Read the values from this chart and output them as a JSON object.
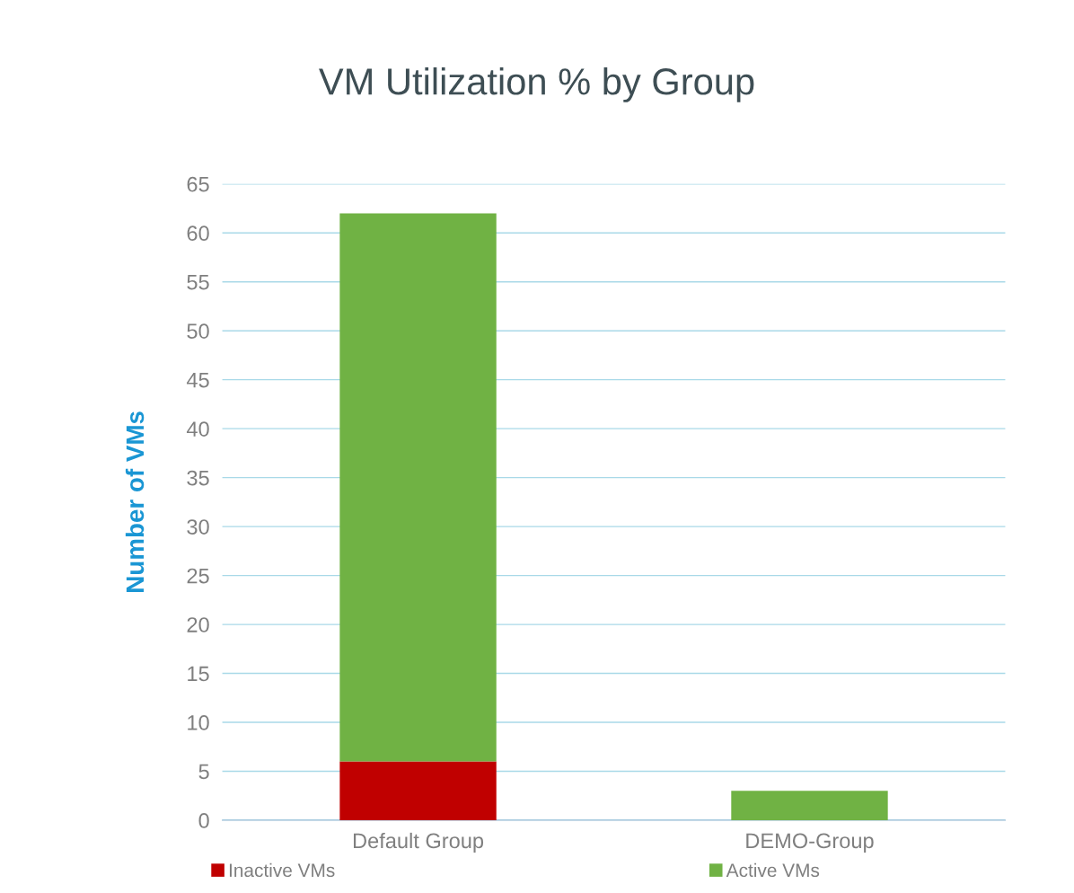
{
  "chart_data": {
    "type": "bar",
    "title": "VM Utilization % by Group",
    "ylabel": "Number of VMs",
    "categories": [
      "Default Group",
      "DEMO-Group"
    ],
    "series": [
      {
        "name": "Inactive VMs",
        "color": "#c00000",
        "values": [
          6,
          0
        ]
      },
      {
        "name": "Active VMs",
        "color": "#70b244",
        "values": [
          56,
          3
        ]
      }
    ],
    "stacked": true,
    "ylim": [
      0,
      65
    ],
    "yticks": [
      0,
      5,
      10,
      15,
      20,
      25,
      30,
      35,
      40,
      45,
      50,
      55,
      60,
      65
    ],
    "grid": "y",
    "legend": "bottom"
  }
}
